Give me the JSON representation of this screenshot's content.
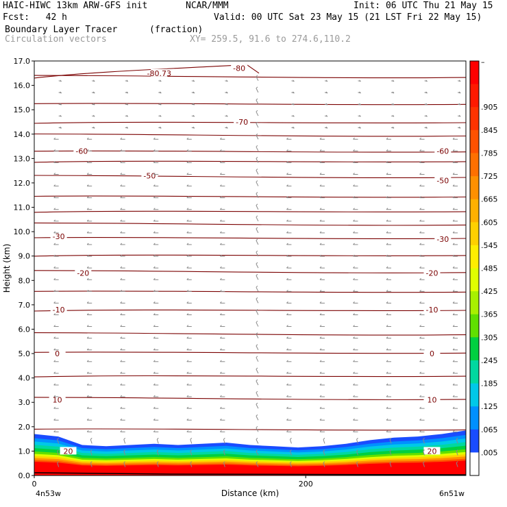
{
  "header": {
    "model": "HAIC-HIWC 13km ARW-GFS init",
    "org": "NCAR/MMM",
    "init": "Init: 06 UTC Thu 21 May 15",
    "fcst": "Fcst:   42 h",
    "valid": "Valid: 00 UTC Sat 23 May 15 (21 LST Fri 22 May 15)",
    "field": "Boundary Layer Tracer",
    "units": "(fraction)",
    "vectors": "Circulation vectors",
    "xy": "XY= 259.5, 91.6 to 274.6,110.2"
  },
  "colors": {
    "contour": "#7a0000",
    "vector": "#888888",
    "tracer_top": "#1a4cff"
  },
  "chart_data": {
    "type": "heatmap",
    "title": "Boundary Layer Tracer",
    "xlabel": "Distance (km)",
    "ylabel": "Height (km)",
    "xlim": [
      0,
      318
    ],
    "ylim": [
      0,
      17
    ],
    "x_ticks": [
      0,
      200
    ],
    "y_ticks": [
      "0.0",
      "1.0",
      "2.0",
      "3.0",
      "4.0",
      "5.0",
      "6.0",
      "7.0",
      "8.0",
      "9.0",
      "10.0",
      "11.0",
      "12.0",
      "13.0",
      "14.0",
      "15.0",
      "16.0",
      "17.0"
    ],
    "x_end_labels": [
      "4n53w",
      "6n51w"
    ],
    "colorbar": {
      "labels": [
        "–",
        ".905",
        ".845",
        ".785",
        ".725",
        ".665",
        ".605",
        ".545",
        ".485",
        ".425",
        ".365",
        ".305",
        ".245",
        ".185",
        ".125",
        ".065",
        ".005"
      ],
      "colors": [
        "#ff0000",
        "#ff1a00",
        "#ff3300",
        "#ff5200",
        "#ff7000",
        "#ff9000",
        "#ffb000",
        "#ffd000",
        "#ffee00",
        "#e0ff00",
        "#a8f000",
        "#60e000",
        "#00d040",
        "#00d8a0",
        "#00c8e8",
        "#0090ff",
        "#1a4cff",
        "#ffffff"
      ]
    },
    "contour_labels": [
      {
        "text": "-80.73",
        "x": 92,
        "y": 16.5
      },
      {
        "text": "-80",
        "x": 151,
        "y": 16.7
      },
      {
        "text": "-70",
        "x": 153,
        "y": 14.5
      },
      {
        "text": "-60",
        "x": 35,
        "y": 13.3
      },
      {
        "text": "-60",
        "x": 301,
        "y": 13.3
      },
      {
        "text": "-50",
        "x": 85,
        "y": 12.3
      },
      {
        "text": "-50",
        "x": 301,
        "y": 12.1
      },
      {
        "text": "-30",
        "x": 18,
        "y": 9.8
      },
      {
        "text": "-30",
        "x": 301,
        "y": 9.7
      },
      {
        "text": "-20",
        "x": 36,
        "y": 8.3
      },
      {
        "text": "-20",
        "x": 293,
        "y": 8.3
      },
      {
        "text": "-10",
        "x": 18,
        "y": 6.8
      },
      {
        "text": "-10",
        "x": 293,
        "y": 6.8
      },
      {
        "text": "0",
        "x": 17,
        "y": 5.0
      },
      {
        "text": "0",
        "x": 293,
        "y": 5.0
      },
      {
        "text": "10",
        "x": 17,
        "y": 3.1
      },
      {
        "text": "10",
        "x": 293,
        "y": 3.1
      },
      {
        "text": "20",
        "x": 25,
        "y": 1.0
      },
      {
        "text": "20",
        "x": 293,
        "y": 1.0
      }
    ],
    "contour_levels_km": [
      16.35,
      15.25,
      14.5,
      13.95,
      13.3,
      12.9,
      12.25,
      11.45,
      10.85,
      10.3,
      9.75,
      9.05,
      8.35,
      7.55,
      6.8,
      5.8,
      5.05,
      4.1,
      3.15,
      1.9
    ],
    "boundary_layer_top_km": [
      1.7,
      1.6,
      1.25,
      1.2,
      1.25,
      1.3,
      1.25,
      1.3,
      1.35,
      1.25,
      1.2,
      1.15,
      1.2,
      1.3,
      1.45,
      1.55,
      1.6,
      1.7,
      1.85
    ]
  }
}
